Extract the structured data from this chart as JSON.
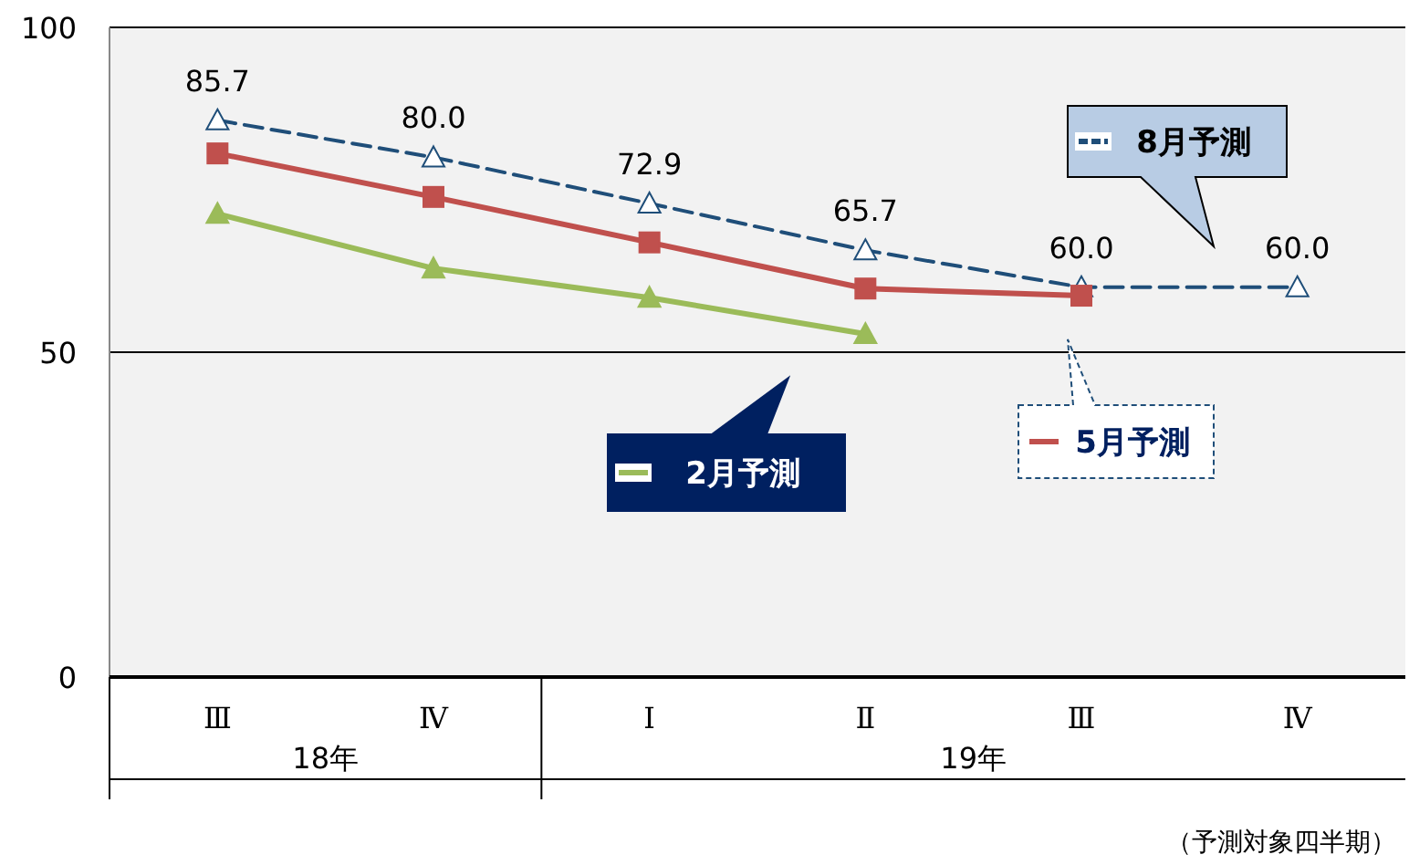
{
  "chart_data": {
    "type": "line",
    "categories": [
      "Ⅲ",
      "Ⅳ",
      "Ⅰ",
      "Ⅱ",
      "Ⅲ",
      "Ⅳ"
    ],
    "ylim": [
      0,
      100
    ],
    "yticks": [
      0,
      50,
      100
    ],
    "grid": "y",
    "legend": "right",
    "series": [
      {
        "name": "8月予測",
        "color": "#1f4e79",
        "marker": "triangle",
        "line_style": "dashed",
        "values": [
          85.7,
          80.0,
          72.9,
          65.7,
          60.0,
          60.0
        ],
        "value_labels": [
          "85.7",
          "80.0",
          "72.9",
          "65.7",
          "60.0",
          "60.0"
        ]
      },
      {
        "name": "5月予測",
        "color": "#c0504d",
        "marker": "square",
        "line_style": "solid",
        "values": [
          80.6,
          73.9,
          66.9,
          59.8,
          58.7,
          null
        ]
      },
      {
        "name": "2月予測",
        "color": "#9bbb59",
        "marker": "triangle",
        "line_style": "solid",
        "values": [
          71.3,
          62.9,
          58.4,
          52.8,
          null,
          null
        ]
      }
    ],
    "annotations": [
      "18年",
      "19年",
      "（予測対象四半期）"
    ]
  }
}
